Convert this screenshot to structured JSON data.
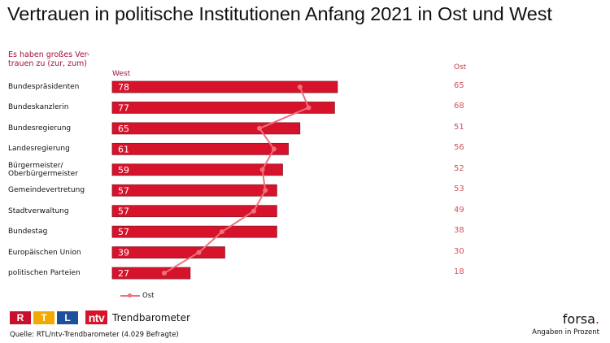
{
  "title": "Vertrauen in politische Institutionen Anfang 2021 in Ost und West",
  "subtitle": "Es haben großes Ver-\ntrauen zu (zur, zum)",
  "west_label": "West",
  "ost_label": "Ost",
  "legend": {
    "ost": "Ost"
  },
  "branding": {
    "rtl_letters": [
      "R",
      "T",
      "L"
    ],
    "rtl_colors": [
      "#c8102e",
      "#f2a900",
      "#1c4f9c"
    ],
    "ntv": "ntv",
    "trend": "Trendbarometer",
    "forsa": "forsa",
    "forsa_dot": "."
  },
  "source": "Quelle: RTL/ntv-Trendbarometer (4.029 Befragte)",
  "note": "Angaben in Prozent",
  "colors": {
    "west_bar": "#d7132c",
    "west_bar_border": "#8a1a2a",
    "ost_line": "#f0707a",
    "accent_text": "#a3123a"
  },
  "chart_data": {
    "type": "bar",
    "orientation": "horizontal",
    "title": "Vertrauen in politische Institutionen Anfang 2021 in Ost und West",
    "xlabel": "",
    "ylabel": "Es haben großes Vertrauen zu (zur, zum)",
    "unit": "Prozent",
    "xlim": [
      0,
      100
    ],
    "grid": false,
    "legend_position": "bottom-left",
    "categories": [
      "Bundespräsidenten",
      "Bundeskanzlerin",
      "Bundesregierung",
      "Landesregierung",
      "Bürgermeister/\nOberbürgermeister",
      "Gemeindevertretung",
      "Stadtverwaltung",
      "Bundestag",
      "Europäischen Union",
      "politischen Parteien"
    ],
    "series": [
      {
        "name": "West",
        "type": "bar",
        "values": [
          78,
          77,
          65,
          61,
          59,
          57,
          57,
          57,
          39,
          27
        ]
      },
      {
        "name": "Ost",
        "type": "line",
        "values": [
          65,
          68,
          51,
          56,
          52,
          53,
          49,
          38,
          30,
          18
        ]
      }
    ]
  }
}
